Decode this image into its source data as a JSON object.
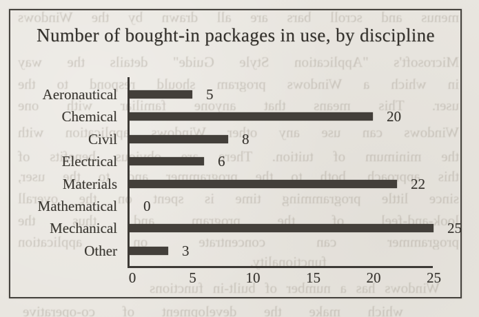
{
  "page": {
    "paper_color": "#e9e6e0",
    "ink_color": "#38352f",
    "bar_color": "#433f3a"
  },
  "chart_data": {
    "type": "bar",
    "orientation": "horizontal",
    "title": "Number of bought-in packages in use, by discipline",
    "categories": [
      "Aeronautical",
      "Chemical",
      "Civil",
      "Electrical",
      "Materials",
      "Mathematical",
      "Mechanical",
      "Other"
    ],
    "values": [
      5,
      20,
      8,
      6,
      22,
      0,
      25,
      3
    ],
    "value_labels": [
      "5",
      "20",
      "8",
      "6",
      "22",
      "0",
      "25",
      "3"
    ],
    "x_ticks": [
      0,
      5,
      10,
      15,
      20,
      25
    ],
    "x_tick_labels": [
      "0",
      "5",
      "10",
      "15",
      "20",
      "25"
    ],
    "xlim": [
      0,
      25
    ],
    "grid": false,
    "legend": false
  },
  "bleed_through": {
    "description_lines": [
      "menus and scroll bars are all drawn by the Windows",
      "Microsoft's \"Application Style Guide\" details the way",
      "in which a Windows program should respond to the",
      "user. This means that anyone familiar with one",
      "Windows can use any other Windows application with",
      "the minimum of tuition. There are obvious benefits of",
      "this approach, both to the programmer and to the user,",
      "since little programming time is spent on the overall",
      "look-and-feel of the program and thus the",
      "programmer can concentrate on application",
      "functionality.",
      "Windows has a number of built-in functions",
      "which make the development of co-operative"
    ]
  }
}
